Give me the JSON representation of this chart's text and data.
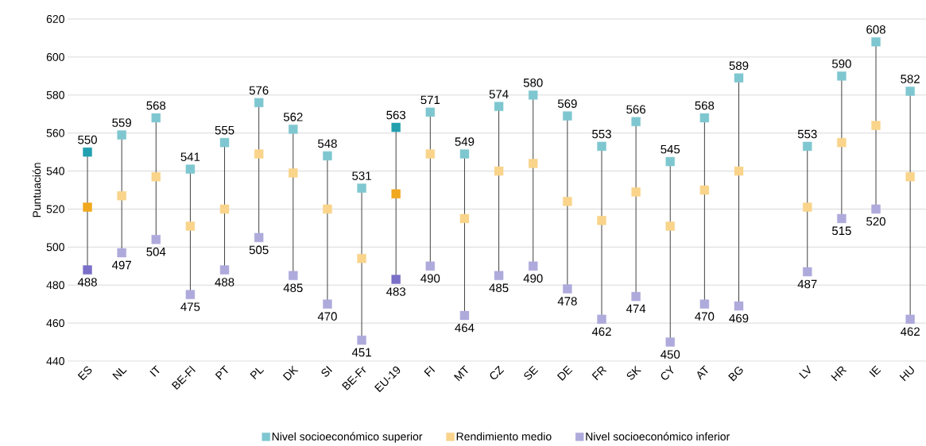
{
  "chart_data": {
    "type": "scatter",
    "ylabel": "Puntuación",
    "categories": [
      "ES",
      "NL",
      "IT",
      "BE-Fl",
      "PT",
      "PL",
      "DK",
      "SI",
      "BE-Fr",
      "EU-19",
      "FI",
      "MT",
      "CZ",
      "SE",
      "DE",
      "FR",
      "SK",
      "CY",
      "AT",
      "BG",
      null,
      "LV",
      "HR",
      "IE",
      "HU"
    ],
    "series": [
      {
        "name": "Nivel socioeconómico superior",
        "color": "#7fc7d0",
        "colors": [
          "#22a0b0",
          "#7fc7d0",
          "#7fc7d0",
          "#7fc7d0",
          "#7fc7d0",
          "#7fc7d0",
          "#7fc7d0",
          "#7fc7d0",
          "#7fc7d0",
          "#22a0b0",
          "#7fc7d0",
          "#7fc7d0",
          "#7fc7d0",
          "#7fc7d0",
          "#7fc7d0",
          "#7fc7d0",
          "#7fc7d0",
          "#7fc7d0",
          "#7fc7d0",
          "#7fc7d0",
          "#7fc7d0",
          "#7fc7d0",
          "#7fc7d0",
          "#7fc7d0",
          "#7fc7d0"
        ],
        "values": [
          550,
          559,
          568,
          541,
          555,
          576,
          562,
          548,
          531,
          563,
          571,
          549,
          574,
          580,
          569,
          553,
          566,
          545,
          568,
          589,
          null,
          553,
          590,
          608,
          582
        ],
        "value_labels": [
          "550",
          "559",
          "568",
          "541",
          "555",
          "576",
          "562",
          "548",
          "531",
          "563",
          "571",
          "549",
          "574",
          "580",
          "569",
          "553",
          "566",
          "545",
          "568",
          "589",
          null,
          "553",
          "590",
          "608",
          "582"
        ]
      },
      {
        "name": "Rendimiento medio",
        "color": "#f9d48a",
        "colors": [
          "#f0a81e",
          "#f9d48a",
          "#f9d48a",
          "#f9d48a",
          "#f9d48a",
          "#f9d48a",
          "#f9d48a",
          "#f9d48a",
          "#f9d48a",
          "#f0a81e",
          "#f9d48a",
          "#f9d48a",
          "#f9d48a",
          "#f9d48a",
          "#f9d48a",
          "#f9d48a",
          "#f9d48a",
          "#f9d48a",
          "#f9d48a",
          "#f9d48a",
          "#f9d48a",
          "#f9d48a",
          "#f9d48a",
          "#f9d48a",
          "#f9d48a"
        ],
        "values": [
          521,
          527,
          537,
          511,
          520,
          549,
          539,
          520,
          494,
          528,
          549,
          515,
          540,
          544,
          524,
          514,
          529,
          511,
          530,
          540,
          null,
          521,
          555,
          564,
          537
        ]
      },
      {
        "name": "Nivel socioeconómico inferior",
        "color": "#aeaadc",
        "colors": [
          "#7a70c8",
          "#aeaadc",
          "#aeaadc",
          "#aeaadc",
          "#aeaadc",
          "#aeaadc",
          "#aeaadc",
          "#aeaadc",
          "#aeaadc",
          "#7a70c8",
          "#aeaadc",
          "#aeaadc",
          "#aeaadc",
          "#aeaadc",
          "#aeaadc",
          "#aeaadc",
          "#aeaadc",
          "#aeaadc",
          "#aeaadc",
          "#aeaadc",
          "#aeaadc",
          "#aeaadc",
          "#aeaadc",
          "#aeaadc",
          "#aeaadc"
        ],
        "values": [
          488,
          497,
          504,
          475,
          488,
          505,
          485,
          470,
          451,
          483,
          490,
          464,
          485,
          490,
          478,
          462,
          474,
          450,
          470,
          469,
          null,
          487,
          515,
          520,
          462
        ],
        "value_labels": [
          "488",
          "497",
          "504",
          "475",
          "488",
          "505",
          "485",
          "470",
          "451",
          "483",
          "490",
          "464",
          "485",
          "490",
          "478",
          "462",
          "474",
          "450",
          "470",
          "469",
          null,
          "487",
          "515",
          "520",
          "462"
        ]
      }
    ],
    "ylim": [
      440,
      620
    ],
    "yticks": [
      440,
      460,
      480,
      500,
      520,
      540,
      560,
      580,
      600,
      620
    ],
    "grid": "y",
    "legend": "bottom",
    "marker": "square"
  }
}
